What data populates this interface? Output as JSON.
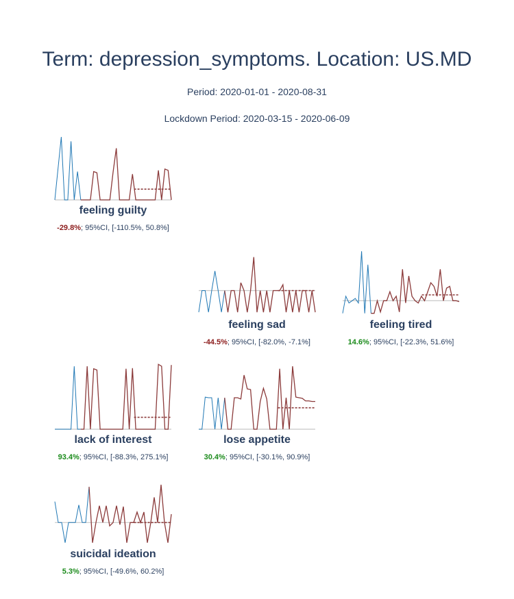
{
  "page": {
    "title": "Term: depression_symptoms. Location: US.MD",
    "period": "Period: 2020-01-01 - 2020-08-31",
    "lockdown": "Lockdown Period: 2020-03-15 - 2020-06-09"
  },
  "colors": {
    "pre": "#1f77b4",
    "post": "#8b3a3a",
    "baseline": "#c8c8c8",
    "negative": "#8b1a1a",
    "positive": "#1a8a1a",
    "text": "#2a3f5f"
  },
  "chart_data": [
    {
      "type": "line",
      "title": "feeling guilty",
      "change": "-29.8%",
      "ci": "; 95%CI, [-110.5%, 50.8%]",
      "direction": "negative",
      "baseline": 0.0,
      "ylim": [
        0,
        1
      ],
      "expected": 0.17,
      "pre": [
        0,
        0.5,
        1.0,
        0,
        0,
        0.93,
        0,
        0.45,
        0
      ],
      "post": [
        0,
        0,
        0,
        0.45,
        0.43,
        0,
        0,
        0,
        0,
        0.44,
        0.82,
        0,
        0,
        0,
        0,
        0.41,
        0,
        0,
        0,
        0,
        0,
        0,
        0,
        0.47,
        0,
        0.49,
        0.47,
        0
      ]
    },
    {
      "type": "line",
      "title": "feeling sad",
      "change": "-44.5%",
      "ci": "; 95%CI, [-82.0%, -7.1%]",
      "direction": "negative",
      "baseline": 0.0,
      "ylim": [
        -0.6,
        1.0
      ],
      "expected": 0.0,
      "pre": [
        -0.55,
        0,
        0,
        -0.55,
        0,
        0.5,
        0,
        -0.55,
        0
      ],
      "post": [
        -0.55,
        0,
        0,
        -0.55,
        0.2,
        0,
        -0.55,
        0,
        0.85,
        -0.55,
        0,
        -0.55,
        0,
        -0.55,
        0,
        0,
        0,
        0.15,
        -0.55,
        0,
        -0.55,
        0,
        -0.55,
        0,
        0,
        -0.55,
        0,
        -0.55
      ]
    },
    {
      "type": "line",
      "title": "feeling tired",
      "change": "14.6%",
      "ci": "; 95%CI, [-22.3%, 51.6%]",
      "direction": "positive",
      "baseline": 0.0,
      "ylim": [
        -0.3,
        1.1
      ],
      "expected": 0.13,
      "pre": [
        -0.28,
        0.1,
        -0.05,
        0,
        0.05,
        -0.05,
        1.1,
        -0.28,
        0.8,
        -0.28
      ],
      "post": [
        -0.28,
        0,
        -0.25,
        0,
        0,
        0.2,
        0,
        0.1,
        -0.25,
        0.7,
        -0.05,
        0.55,
        0.1,
        0,
        -0.05,
        0.1,
        0.0,
        0.2,
        0.4,
        0.32,
        0.1,
        0.7,
        0,
        0.28,
        0.32,
        0,
        0,
        -0.02
      ]
    },
    {
      "type": "line",
      "title": "lack of interest",
      "change": "93.4%",
      "ci": "; 95%CI, [-88.3%, 275.1%]",
      "direction": "positive",
      "baseline": 0.0,
      "ylim": [
        0,
        1
      ],
      "expected": 0.19,
      "pre": [
        0,
        0,
        0,
        0,
        0,
        0,
        1.0,
        0,
        0
      ],
      "post": [
        0,
        1.0,
        0,
        0.96,
        0.94,
        0,
        0,
        0,
        0,
        0,
        0,
        0,
        0,
        0.96,
        0,
        0.97,
        0,
        0,
        0,
        0,
        0,
        0,
        0,
        1.03,
        1.0,
        0,
        0,
        1.02
      ]
    },
    {
      "type": "line",
      "title": "lose appetite",
      "change": "30.4%",
      "ci": "; 95%CI, [-30.1%, 90.9%]",
      "direction": "positive",
      "baseline": 0.0,
      "ylim": [
        0,
        1
      ],
      "expected": 0.34,
      "pre": [
        0,
        0,
        0.51,
        0.5,
        0.5,
        0,
        0.5,
        0,
        0.5
      ],
      "post": [
        0,
        0,
        0.5,
        0.5,
        0.48,
        0.86,
        0.64,
        0.63,
        0,
        0,
        0.44,
        0.65,
        0.48,
        0,
        0,
        0,
        0.96,
        0,
        0.5,
        0,
        1.0,
        0.51,
        0.5,
        0.49,
        0.45,
        0.45,
        0.44,
        0.44
      ]
    },
    {
      "type": "line",
      "title": "suicidal ideation",
      "change": "5.3%",
      "ci": "; 95%CI, [-49.6%, 60.2%]",
      "direction": "positive",
      "baseline": 0.0,
      "ylim": [
        -0.5,
        1.0
      ],
      "expected": 0.0,
      "pre": [
        0.5,
        0,
        0,
        -0.48,
        0,
        0,
        0,
        0.42,
        0,
        0,
        0.85
      ],
      "post": [
        -0.48,
        0,
        0.4,
        0,
        0.4,
        -0.08,
        0,
        0.4,
        -0.05,
        0.38,
        -0.48,
        0,
        0,
        0.25,
        0,
        0.25,
        -0.48,
        0,
        0.6,
        0,
        0.9,
        0,
        -0.48,
        0.2
      ]
    }
  ]
}
